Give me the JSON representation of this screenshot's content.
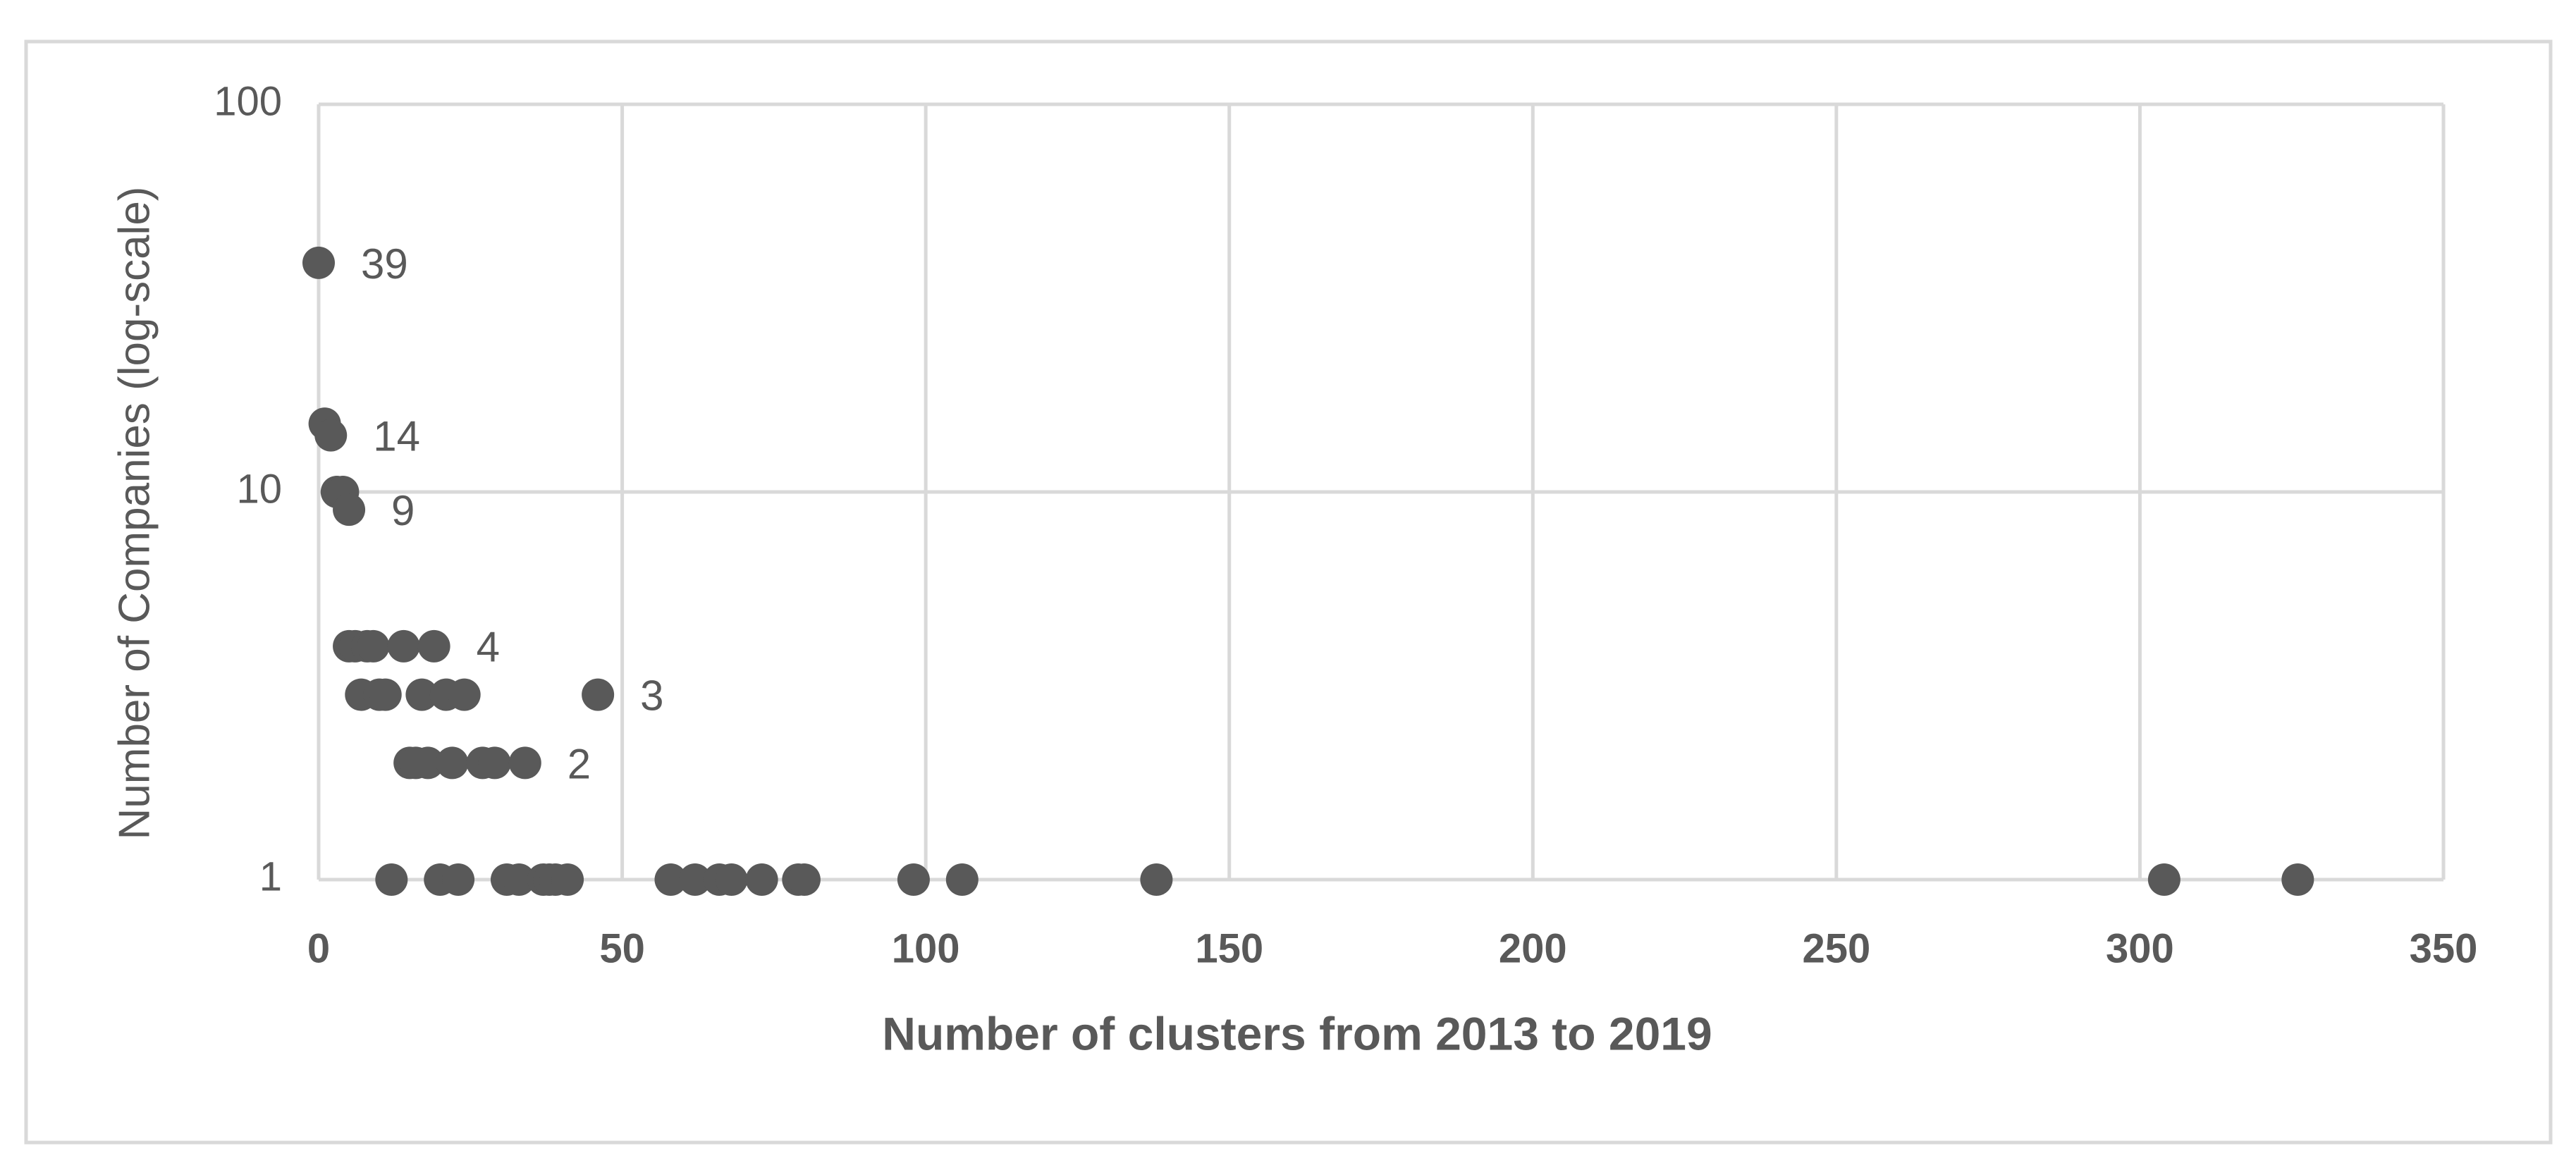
{
  "chart_data": {
    "type": "scatter",
    "xlabel": "Number of clusters from 2013 to 2019",
    "ylabel": "Number of Companies (log-scale)",
    "xlim": [
      0,
      350
    ],
    "xticks": [
      0,
      50,
      100,
      150,
      200,
      250,
      300,
      350
    ],
    "ylim": [
      1,
      100
    ],
    "yticks": [
      1,
      10,
      100
    ],
    "ylog": true,
    "grid": true,
    "color": "#595959",
    "x": [
      0,
      1,
      2,
      3,
      4,
      5,
      5,
      6,
      8,
      9,
      14,
      19,
      7,
      10,
      11,
      17,
      21,
      24,
      46,
      15,
      16,
      18,
      22,
      27,
      29,
      34,
      12,
      20,
      23,
      31,
      33,
      37,
      38,
      39,
      41,
      58,
      62,
      66,
      68,
      73,
      79,
      80,
      98,
      106,
      138,
      304,
      326
    ],
    "values": [
      39,
      15,
      14,
      10,
      10,
      9,
      4,
      4,
      4,
      4,
      4,
      4,
      3,
      3,
      3,
      3,
      3,
      3,
      3,
      2,
      2,
      2,
      2,
      2,
      2,
      2,
      1,
      1,
      1,
      1,
      1,
      1,
      1,
      1,
      1,
      1,
      1,
      1,
      1,
      1,
      1,
      1,
      1,
      1,
      1,
      1,
      1
    ],
    "annotations": [
      {
        "text": "39",
        "x": 0,
        "y": 39
      },
      {
        "text": "14",
        "x": 2,
        "y": 14
      },
      {
        "text": "9",
        "x": 5,
        "y": 9
      },
      {
        "text": "4",
        "x": 19,
        "y": 4
      },
      {
        "text": "3",
        "x": 46,
        "y": 3
      },
      {
        "text": "2",
        "x": 34,
        "y": 2
      }
    ]
  }
}
